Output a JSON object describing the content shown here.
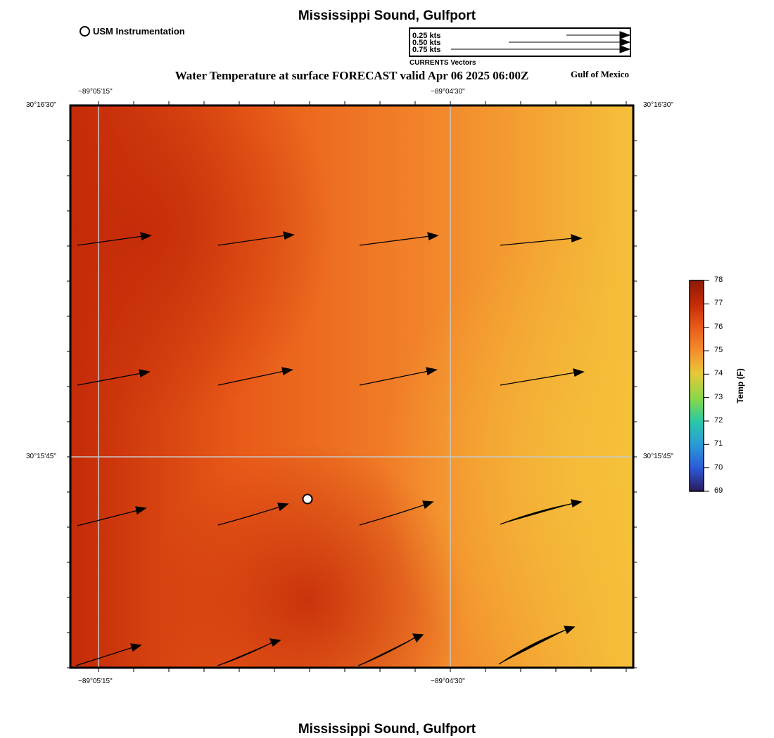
{
  "map": {
    "title_top": "Mississippi Sound, Gulfport",
    "title_bottom": "Mississippi Sound, Gulfport",
    "subtitle": "Water Temperature at surface FORECAST valid Apr 06 2025 06:00Z",
    "region_label": "Gulf of Mexico"
  },
  "legend": {
    "instrumentation_label": "USM Instrumentation",
    "vectors_title": "CURRENTS Vectors",
    "vector_labels": [
      "0.25 kts",
      "0.50 kts",
      "0.75 kts"
    ]
  },
  "axes": {
    "lon_ticks": [
      "−89°05'15\"",
      "−89°04'30\""
    ],
    "lat_ticks": [
      "30°16'30\"",
      "30°15'45\""
    ]
  },
  "colorbar": {
    "title": "Temp (F)",
    "ticks": [
      "78",
      "77",
      "76",
      "75",
      "74",
      "73",
      "72",
      "71",
      "70",
      "69"
    ],
    "colors": {
      "c78": "#8c1a06",
      "c77": "#c42a08",
      "c76": "#e85a18",
      "c75": "#f48c2c",
      "c74": "#e8c838",
      "c73": "#8ad848",
      "c72": "#28c8a8",
      "c71": "#2a9ad8",
      "c70": "#2c5ad8",
      "c69": "#2a1a5a"
    }
  },
  "field_colors": {
    "hot": "#c42a08",
    "warm": "#e85a18",
    "mid": "#f2822a",
    "cool": "#f5c03a"
  }
}
